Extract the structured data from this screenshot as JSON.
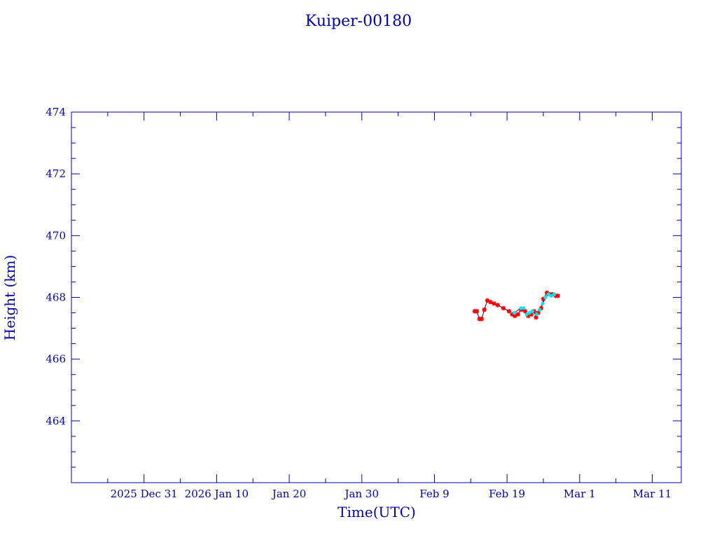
{
  "chart_data": {
    "type": "line",
    "title": "Kuiper-00180",
    "xlabel": "Time(UTC)",
    "ylabel": "Height (km)",
    "ylim": [
      462,
      474
    ],
    "yticks": [
      464,
      466,
      468,
      470,
      472,
      474
    ],
    "xlim": [
      "2025-12-21",
      "2026-03-15"
    ],
    "xticks": [
      {
        "date": "2025-12-31",
        "label": "2025 Dec 31"
      },
      {
        "date": "2026-01-10",
        "label": "2026 Jan 10"
      },
      {
        "date": "2026-01-20",
        "label": "Jan 20"
      },
      {
        "date": "2026-01-30",
        "label": "Jan 30"
      },
      {
        "date": "2026-02-09",
        "label": "Feb  9"
      },
      {
        "date": "2026-02-19",
        "label": "Feb 19"
      },
      {
        "date": "2026-03-01",
        "label": "Mar  1"
      },
      {
        "date": "2026-03-11",
        "label": "Mar 11"
      }
    ],
    "grid": false,
    "series": [
      {
        "color": "#ff0000",
        "marker": "star",
        "points": [
          {
            "x": "2026-02-14 13:00",
            "y": 467.55
          },
          {
            "x": "2026-02-14 20:00",
            "y": 467.55
          },
          {
            "x": "2026-02-15 05:00",
            "y": 467.3
          },
          {
            "x": "2026-02-15 12:00",
            "y": 467.3
          },
          {
            "x": "2026-02-15 21:00",
            "y": 467.6
          },
          {
            "x": "2026-02-16 07:00",
            "y": 467.9
          },
          {
            "x": "2026-02-16 17:00",
            "y": 467.85
          },
          {
            "x": "2026-02-17 05:00",
            "y": 467.8
          },
          {
            "x": "2026-02-17 17:00",
            "y": 467.75
          },
          {
            "x": "2026-02-18 12:00",
            "y": 467.65
          },
          {
            "x": "2026-02-19 07:00",
            "y": 467.55
          },
          {
            "x": "2026-02-19 17:00",
            "y": 467.45
          },
          {
            "x": "2026-02-20 02:00",
            "y": 467.4
          },
          {
            "x": "2026-02-20 12:00",
            "y": 467.45
          },
          {
            "x": "2026-02-20 22:00",
            "y": 467.6
          },
          {
            "x": "2026-02-21 12:00",
            "y": 467.55
          },
          {
            "x": "2026-02-21 22:00",
            "y": 467.4
          },
          {
            "x": "2026-02-22 08:00",
            "y": 467.45
          },
          {
            "x": "2026-02-22 17:00",
            "y": 467.55
          },
          {
            "x": "2026-02-23 00:00",
            "y": 467.35
          },
          {
            "x": "2026-02-23 07:00",
            "y": 467.5
          },
          {
            "x": "2026-02-23 17:00",
            "y": 467.65
          },
          {
            "x": "2026-02-24 00:00",
            "y": 467.95
          },
          {
            "x": "2026-02-24 12:00",
            "y": 468.15
          },
          {
            "x": "2026-02-24 22:00",
            "y": 468.1
          },
          {
            "x": "2026-02-25 07:00",
            "y": 468.1
          },
          {
            "x": "2026-02-25 17:00",
            "y": 468.05
          },
          {
            "x": "2026-02-26 00:00",
            "y": 468.05
          }
        ]
      },
      {
        "color": "#00e5ee",
        "marker": "dot",
        "points": [
          {
            "x": "2026-02-20 00:00",
            "y": 467.5
          },
          {
            "x": "2026-02-20 22:00",
            "y": 467.65
          },
          {
            "x": "2026-02-21 07:00",
            "y": 467.65
          },
          {
            "x": "2026-02-21 17:00",
            "y": 467.45
          },
          {
            "x": "2026-02-22 02:00",
            "y": 467.5
          },
          {
            "x": "2026-02-22 12:00",
            "y": 467.55
          },
          {
            "x": "2026-02-23 02:00",
            "y": 467.45
          },
          {
            "x": "2026-02-23 12:00",
            "y": 467.6
          },
          {
            "x": "2026-02-23 22:00",
            "y": 467.8
          },
          {
            "x": "2026-02-24 07:00",
            "y": 468.0
          },
          {
            "x": "2026-02-24 17:00",
            "y": 468.1
          },
          {
            "x": "2026-02-25 02:00",
            "y": 468.05
          },
          {
            "x": "2026-02-25 12:00",
            "y": 468.1
          }
        ]
      }
    ],
    "colors": {
      "axes": "#0000aa",
      "line": "#000066"
    }
  }
}
